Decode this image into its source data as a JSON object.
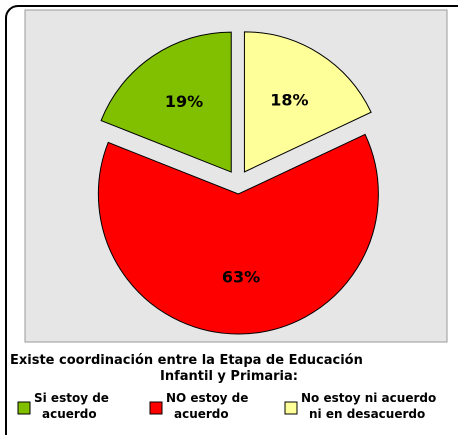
{
  "chart_data": {
    "type": "pie",
    "title": "Existe coordinación entre la Etapa de Educación Infantil y Primaria:",
    "categories": [
      "Si estoy de acuerdo",
      "NO estoy de acuerdo",
      "No estoy ni acuerdo ni en desacuerdo"
    ],
    "values": [
      19,
      63,
      18
    ],
    "value_labels": [
      "19%",
      "63%",
      "18%"
    ],
    "colors": [
      "#80c000",
      "#ff0000",
      "#ffff99"
    ],
    "legend": "bottom"
  }
}
